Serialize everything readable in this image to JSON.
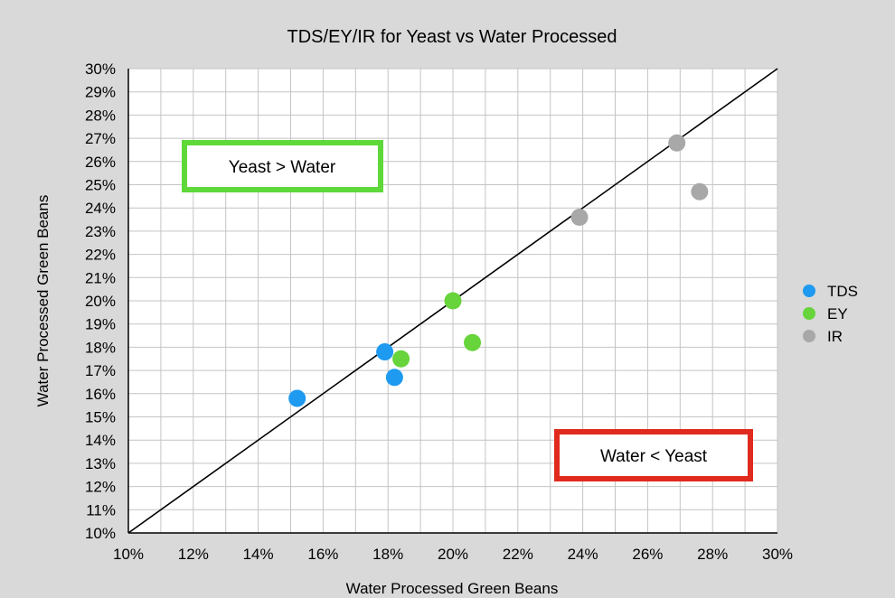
{
  "chart_data": {
    "type": "scatter",
    "title": "TDS/EY/IR for Yeast vs Water Processed",
    "xlabel": "Water Processed Green Beans",
    "ylabel": "Water Processed Green Beans",
    "xlim": [
      10,
      30
    ],
    "ylim": [
      10,
      30
    ],
    "x_ticks": [
      "10%",
      "12%",
      "14%",
      "16%",
      "18%",
      "20%",
      "22%",
      "24%",
      "26%",
      "28%",
      "30%"
    ],
    "y_ticks": [
      "10%",
      "11%",
      "12%",
      "13%",
      "14%",
      "15%",
      "16%",
      "17%",
      "18%",
      "19%",
      "20%",
      "21%",
      "22%",
      "23%",
      "24%",
      "25%",
      "26%",
      "27%",
      "28%",
      "29%",
      "30%"
    ],
    "grid": true,
    "legend_position": "right",
    "reference_line": {
      "from": [
        10,
        10
      ],
      "to": [
        30,
        30
      ]
    },
    "series": [
      {
        "name": "TDS",
        "color": "#1e9af0",
        "points": [
          [
            15.2,
            15.8
          ],
          [
            17.9,
            17.8
          ],
          [
            18.2,
            16.7
          ]
        ]
      },
      {
        "name": "EY",
        "color": "#66d43a",
        "points": [
          [
            18.4,
            17.5
          ],
          [
            20.0,
            20.0
          ],
          [
            20.6,
            18.2
          ]
        ]
      },
      {
        "name": "IR",
        "color": "#a8a8a8",
        "points": [
          [
            23.9,
            23.6
          ],
          [
            26.9,
            26.8
          ],
          [
            27.6,
            24.7
          ]
        ]
      }
    ],
    "annotations": [
      {
        "text": "Yeast > Water",
        "border_color": "#5fd83a"
      },
      {
        "text": "Water < Yeast",
        "border_color": "#e02a1e"
      }
    ]
  }
}
